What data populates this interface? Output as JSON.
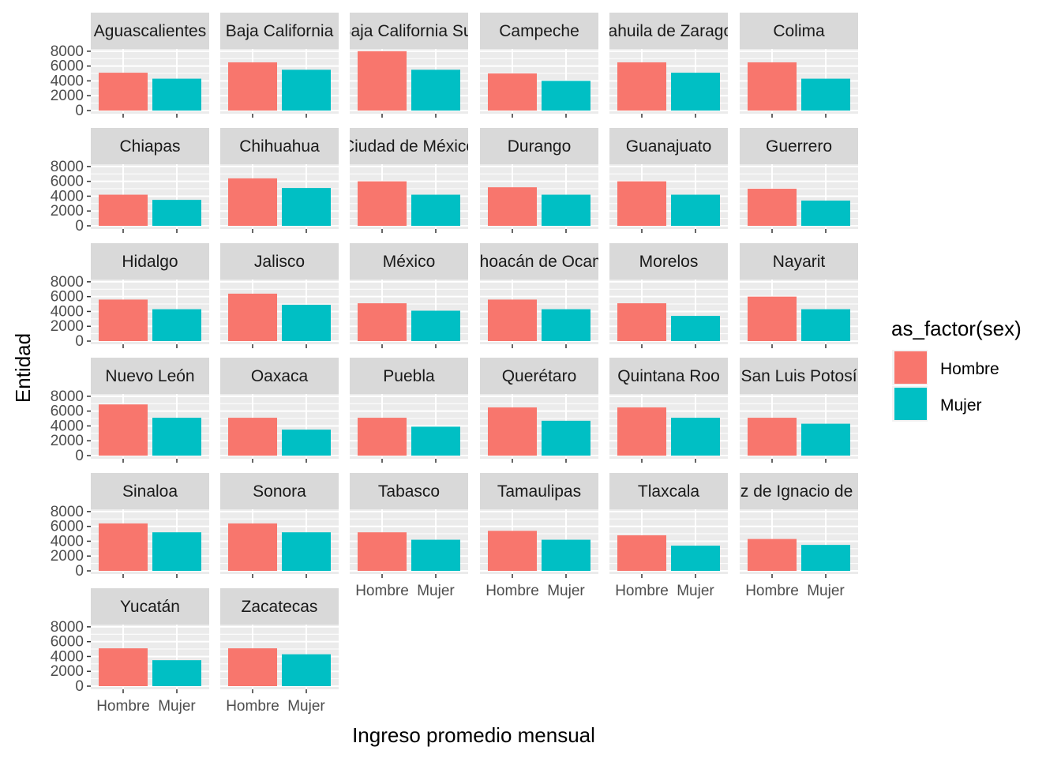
{
  "chart_data": {
    "type": "bar",
    "facet": "wrap",
    "xlabel": "Ingreso promedio mensual",
    "ylabel": "Entidad",
    "categories": [
      "Hombre",
      "Mujer"
    ],
    "y_ticks": [
      0,
      2000,
      4000,
      6000,
      8000
    ],
    "y_tick_labels": [
      "0",
      "2000",
      "4000",
      "6000",
      "8000"
    ],
    "ylim": [
      0,
      8200
    ],
    "grid": true,
    "legend": {
      "title": "as_factor(sex)",
      "position": "right",
      "entries": [
        {
          "label": "Hombre",
          "color": "#F8766D"
        },
        {
          "label": "Mujer",
          "color": "#00BFC4"
        }
      ]
    },
    "colors": {
      "Hombre": "#F8766D",
      "Mujer": "#00BFC4",
      "panel_bg": "#EBEBEB",
      "strip_bg": "#D9D9D9",
      "grid": "#FFFFFF"
    },
    "panels": [
      {
        "label": "Aguascalientes",
        "values": [
          5100,
          4300
        ]
      },
      {
        "label": "Baja California",
        "values": [
          6500,
          5500
        ]
      },
      {
        "label": "Baja California Sur",
        "values": [
          8000,
          5500
        ]
      },
      {
        "label": "Campeche",
        "values": [
          5000,
          4000
        ]
      },
      {
        "label": "Coahuila de Zaragoza",
        "values": [
          6500,
          5100
        ]
      },
      {
        "label": "Colima",
        "values": [
          6500,
          4300
        ]
      },
      {
        "label": "Chiapas",
        "values": [
          4200,
          3500
        ]
      },
      {
        "label": "Chihuahua",
        "values": [
          6400,
          5100
        ]
      },
      {
        "label": "Ciudad de México",
        "values": [
          6000,
          4200
        ]
      },
      {
        "label": "Durango",
        "values": [
          5200,
          4200
        ]
      },
      {
        "label": "Guanajuato",
        "values": [
          6000,
          4200
        ]
      },
      {
        "label": "Guerrero",
        "values": [
          5000,
          3400
        ]
      },
      {
        "label": "Hidalgo",
        "values": [
          5600,
          4300
        ]
      },
      {
        "label": "Jalisco",
        "values": [
          6400,
          4900
        ]
      },
      {
        "label": "México",
        "values": [
          5100,
          4100
        ]
      },
      {
        "label": "Michoacán de Ocampo",
        "values": [
          5600,
          4300
        ]
      },
      {
        "label": "Morelos",
        "values": [
          5100,
          3400
        ]
      },
      {
        "label": "Nayarit",
        "values": [
          6000,
          4300
        ]
      },
      {
        "label": "Nuevo León",
        "values": [
          6900,
          5100
        ]
      },
      {
        "label": "Oaxaca",
        "values": [
          5100,
          3500
        ]
      },
      {
        "label": "Puebla",
        "values": [
          5100,
          3900
        ]
      },
      {
        "label": "Querétaro",
        "values": [
          6500,
          4700
        ]
      },
      {
        "label": "Quintana Roo",
        "values": [
          6500,
          5100
        ]
      },
      {
        "label": "San Luis Potosí",
        "values": [
          5100,
          4300
        ]
      },
      {
        "label": "Sinaloa",
        "values": [
          6400,
          5200
        ]
      },
      {
        "label": "Sonora",
        "values": [
          6400,
          5200
        ]
      },
      {
        "label": "Tabasco",
        "values": [
          5200,
          4200
        ]
      },
      {
        "label": "Tamaulipas",
        "values": [
          5400,
          4200
        ]
      },
      {
        "label": "Tlaxcala",
        "values": [
          4800,
          3400
        ]
      },
      {
        "label": "Veracruz de Ignacio de la Llave",
        "values": [
          4300,
          3500
        ]
      },
      {
        "label": "Yucatán",
        "values": [
          5100,
          3500
        ]
      },
      {
        "label": "Zacatecas",
        "values": [
          5100,
          4300
        ]
      }
    ]
  }
}
